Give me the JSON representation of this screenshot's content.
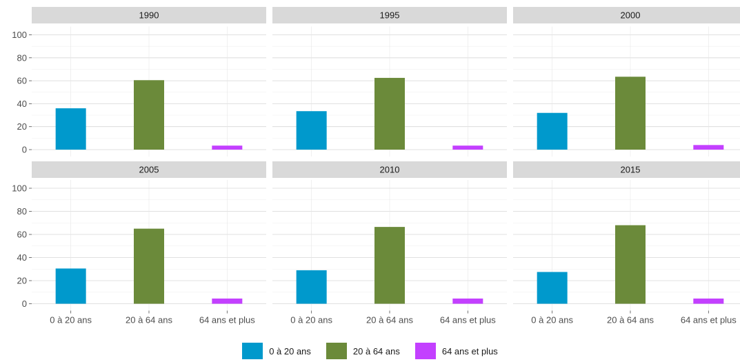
{
  "chart_data": {
    "type": "bar",
    "facet_by": "year",
    "categories": [
      "0 à 20 ans",
      "20 à 64 ans",
      "64 ans et plus"
    ],
    "colors": [
      "#0099cc",
      "#6b8a3a",
      "#c340ff"
    ],
    "ylim": [
      0,
      100
    ],
    "yticks": [
      "0",
      "20",
      "40",
      "60",
      "80",
      "100"
    ],
    "grid": true,
    "legend_position": "bottom",
    "panels": [
      {
        "facet": "1990",
        "values": [
          36,
          60.5,
          3.5
        ]
      },
      {
        "facet": "1995",
        "values": [
          33.5,
          62.5,
          3.5
        ]
      },
      {
        "facet": "2000",
        "values": [
          32,
          63.5,
          4
        ]
      },
      {
        "facet": "2005",
        "values": [
          30.5,
          65,
          4.5
        ]
      },
      {
        "facet": "2010",
        "values": [
          29,
          66.5,
          4.5
        ]
      },
      {
        "facet": "2015",
        "values": [
          27.5,
          68,
          4.5
        ]
      }
    ]
  },
  "legend": [
    {
      "label": "0 à 20 ans",
      "color": "#0099cc"
    },
    {
      "label": "20 à 64 ans",
      "color": "#6b8a3a"
    },
    {
      "label": "64 ans et plus",
      "color": "#c340ff"
    }
  ]
}
